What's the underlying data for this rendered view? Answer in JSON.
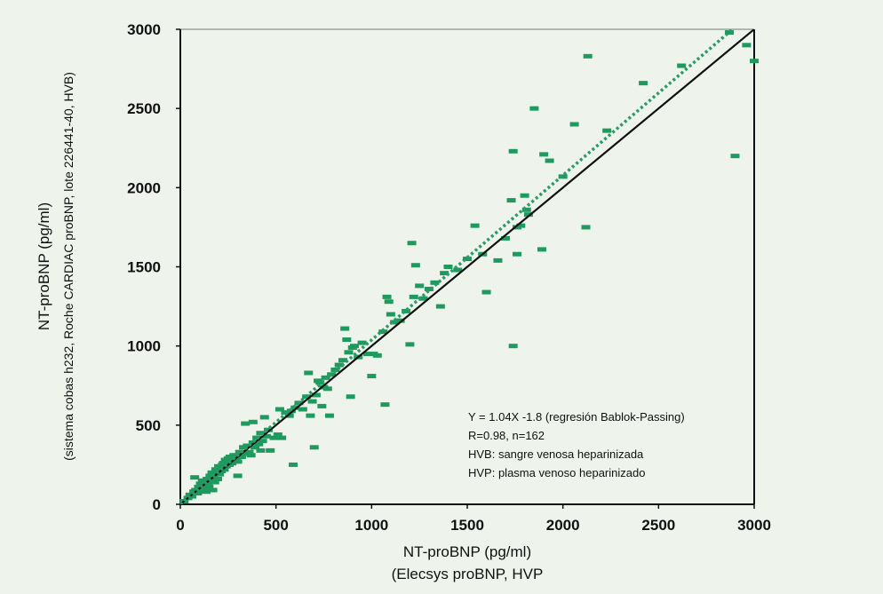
{
  "chart_data": {
    "type": "scatter",
    "xlabel": "NT-proBNP (pg/ml)",
    "xlabel_sub": "(Elecsys proBNP, HVP",
    "ylabel": "NT-proBNP (pg/ml)",
    "ylabel_sub": "(sistema cobas h232, Roche CARDIAC proBNP, lote 226441-40, HVB)",
    "xlim": [
      0,
      3000
    ],
    "ylim": [
      0,
      3000
    ],
    "xticks": [
      "0",
      "500",
      "1000",
      "1500",
      "2000",
      "2500",
      "3000"
    ],
    "yticks": [
      "0",
      "500",
      "1000",
      "1500",
      "2000",
      "2500",
      "3000"
    ],
    "grid": false,
    "annotations": [
      "Y = 1.04X -1.8 (regresión Bablok-Passing)",
      "R=0.98, n=162",
      "HVB: sangre venosa heparinizada",
      "HVP: plasma venoso heparinizado"
    ],
    "lines": [
      {
        "style": "solid",
        "color": "#111111",
        "x": [
          0,
          3000
        ],
        "y": [
          0,
          3000
        ]
      },
      {
        "style": "dotted",
        "color": "#2e9a66",
        "x": [
          0,
          3000
        ],
        "y": [
          -1.8,
          3118.2
        ]
      }
    ],
    "marker_color": "#1e9a5e",
    "points": [
      [
        20,
        20
      ],
      [
        40,
        40
      ],
      [
        50,
        60
      ],
      [
        60,
        50
      ],
      [
        70,
        80
      ],
      [
        75,
        170
      ],
      [
        80,
        90
      ],
      [
        90,
        70
      ],
      [
        95,
        110
      ],
      [
        100,
        100
      ],
      [
        105,
        130
      ],
      [
        110,
        95
      ],
      [
        115,
        150
      ],
      [
        120,
        120
      ],
      [
        125,
        90
      ],
      [
        130,
        140
      ],
      [
        135,
        80
      ],
      [
        140,
        160
      ],
      [
        145,
        130
      ],
      [
        150,
        110
      ],
      [
        155,
        180
      ],
      [
        160,
        150
      ],
      [
        165,
        200
      ],
      [
        170,
        90
      ],
      [
        175,
        170
      ],
      [
        180,
        140
      ],
      [
        185,
        220
      ],
      [
        190,
        200
      ],
      [
        195,
        160
      ],
      [
        200,
        240
      ],
      [
        205,
        190
      ],
      [
        210,
        230
      ],
      [
        215,
        210
      ],
      [
        220,
        250
      ],
      [
        225,
        260
      ],
      [
        230,
        220
      ],
      [
        235,
        280
      ],
      [
        240,
        240
      ],
      [
        245,
        270
      ],
      [
        250,
        290
      ],
      [
        255,
        250
      ],
      [
        260,
        300
      ],
      [
        265,
        280
      ],
      [
        270,
        260
      ],
      [
        280,
        310
      ],
      [
        290,
        290
      ],
      [
        300,
        270
      ],
      [
        310,
        330
      ],
      [
        320,
        300
      ],
      [
        330,
        360
      ],
      [
        300,
        180
      ],
      [
        340,
        320
      ],
      [
        350,
        370
      ],
      [
        360,
        330
      ],
      [
        370,
        310
      ],
      [
        380,
        390
      ],
      [
        390,
        360
      ],
      [
        400,
        420
      ],
      [
        410,
        380
      ],
      [
        420,
        340
      ],
      [
        340,
        510
      ],
      [
        380,
        520
      ],
      [
        420,
        450
      ],
      [
        430,
        400
      ],
      [
        450,
        430
      ],
      [
        440,
        550
      ],
      [
        460,
        470
      ],
      [
        470,
        340
      ],
      [
        490,
        420
      ],
      [
        510,
        440
      ],
      [
        520,
        600
      ],
      [
        530,
        420
      ],
      [
        550,
        580
      ],
      [
        570,
        560
      ],
      [
        580,
        590
      ],
      [
        590,
        250
      ],
      [
        600,
        610
      ],
      [
        620,
        640
      ],
      [
        640,
        600
      ],
      [
        660,
        680
      ],
      [
        670,
        830
      ],
      [
        680,
        560
      ],
      [
        690,
        650
      ],
      [
        700,
        360
      ],
      [
        710,
        690
      ],
      [
        720,
        780
      ],
      [
        730,
        770
      ],
      [
        740,
        620
      ],
      [
        750,
        740
      ],
      [
        760,
        800
      ],
      [
        770,
        730
      ],
      [
        780,
        560
      ],
      [
        790,
        820
      ],
      [
        810,
        850
      ],
      [
        830,
        880
      ],
      [
        850,
        910
      ],
      [
        860,
        1110
      ],
      [
        870,
        1040
      ],
      [
        880,
        960
      ],
      [
        890,
        680
      ],
      [
        900,
        990
      ],
      [
        910,
        1000
      ],
      [
        930,
        930
      ],
      [
        950,
        1020
      ],
      [
        980,
        950
      ],
      [
        1000,
        810
      ],
      [
        1010,
        950
      ],
      [
        1030,
        940
      ],
      [
        1060,
        1090
      ],
      [
        1070,
        630
      ],
      [
        1080,
        1310
      ],
      [
        1090,
        1280
      ],
      [
        1100,
        1200
      ],
      [
        1120,
        1150
      ],
      [
        1150,
        1160
      ],
      [
        1180,
        1220
      ],
      [
        1200,
        1010
      ],
      [
        1210,
        1650
      ],
      [
        1220,
        1310
      ],
      [
        1230,
        1510
      ],
      [
        1250,
        1380
      ],
      [
        1270,
        1300
      ],
      [
        1300,
        1360
      ],
      [
        1330,
        1400
      ],
      [
        1360,
        1250
      ],
      [
        1380,
        1460
      ],
      [
        1400,
        1500
      ],
      [
        1450,
        1480
      ],
      [
        1500,
        1550
      ],
      [
        1540,
        1760
      ],
      [
        1580,
        1580
      ],
      [
        1600,
        1340
      ],
      [
        1660,
        1540
      ],
      [
        1700,
        1680
      ],
      [
        1730,
        1920
      ],
      [
        1740,
        2230
      ],
      [
        1740,
        1000
      ],
      [
        1760,
        1750
      ],
      [
        1760,
        1580
      ],
      [
        1780,
        1760
      ],
      [
        1800,
        1950
      ],
      [
        1810,
        1860
      ],
      [
        1820,
        1830
      ],
      [
        1850,
        2500
      ],
      [
        1890,
        1610
      ],
      [
        1900,
        2210
      ],
      [
        1930,
        2170
      ],
      [
        2000,
        2070
      ],
      [
        2060,
        2400
      ],
      [
        2120,
        1750
      ],
      [
        2130,
        2830
      ],
      [
        2230,
        2360
      ],
      [
        2420,
        2660
      ],
      [
        2620,
        2770
      ],
      [
        2870,
        2980
      ],
      [
        2900,
        2200
      ],
      [
        2960,
        2900
      ],
      [
        3000,
        2800
      ]
    ]
  }
}
